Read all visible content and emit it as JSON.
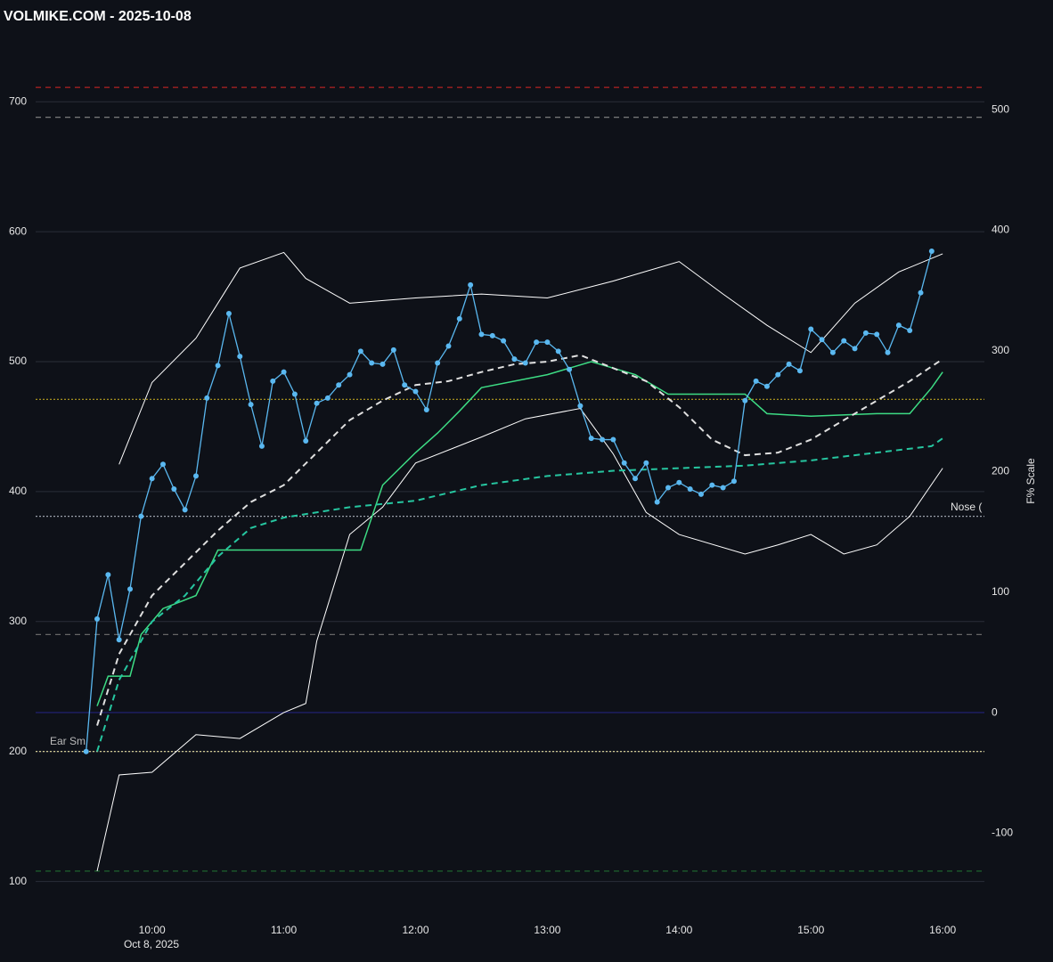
{
  "chart_data": {
    "type": "line",
    "title": "VOLMIKE.COM  - 2025-10-08",
    "y2_label": "F% Scale",
    "x_sublabel": "Oct 8, 2025",
    "annotations": [
      "Nose (",
      "Ear Sm"
    ],
    "xlim": [
      "09:07",
      "16:19"
    ],
    "xticks": [
      "10:00",
      "11:00",
      "12:00",
      "13:00",
      "14:00",
      "15:00",
      "16:00"
    ],
    "ylim": [
      73,
      744
    ],
    "yticks": [
      100,
      200,
      300,
      400,
      500,
      600,
      700
    ],
    "y2lim": [
      -169,
      554
    ],
    "y2ticks": [
      -100,
      0,
      100,
      200,
      300,
      400,
      500
    ],
    "grid": true,
    "reference_lines": [
      {
        "value": 711,
        "color": "#b22222",
        "dash": "6,5"
      },
      {
        "value": 688,
        "color": "#888888",
        "dash": "6,5"
      },
      {
        "value": 471,
        "color": "#b8a01e",
        "dash": "2,2"
      },
      {
        "value": 381,
        "color": "#9aa0aa",
        "dash": "2,2"
      },
      {
        "value": 290,
        "color": "#666666",
        "dash": "6,5"
      },
      {
        "value": 230,
        "color": "#23237a",
        "dash": ""
      },
      {
        "value": 200,
        "color": "#e8e0a0",
        "dash": "2,2"
      },
      {
        "value": 108,
        "color": "#1f6b2f",
        "dash": "6,5"
      }
    ],
    "series": [
      {
        "color": "#ffffff",
        "width": 1,
        "dash": "",
        "x": [
          "09:45",
          "10:00",
          "10:20",
          "10:40",
          "11:00",
          "11:10",
          "11:30",
          "12:00",
          "12:30",
          "13:00",
          "13:30",
          "14:00",
          "14:20",
          "14:40",
          "15:00",
          "15:20",
          "15:40",
          "16:00"
        ],
        "values": [
          421,
          484,
          518,
          572,
          584,
          564,
          545,
          549,
          552,
          549,
          562,
          577,
          552,
          528,
          507,
          545,
          569,
          583
        ]
      },
      {
        "color": "#ffffff",
        "width": 1,
        "dash": "",
        "x": [
          "09:35",
          "09:45",
          "10:00",
          "10:20",
          "10:40",
          "11:00",
          "11:10",
          "11:15",
          "11:30",
          "11:45",
          "12:00",
          "12:30",
          "12:50",
          "13:15",
          "13:30",
          "13:45",
          "14:00",
          "14:30",
          "14:45",
          "15:00",
          "15:15",
          "15:30",
          "15:45",
          "16:00"
        ],
        "values": [
          108,
          182,
          184,
          213,
          210,
          230,
          237,
          285,
          367,
          388,
          422,
          442,
          456,
          464,
          429,
          384,
          367,
          352,
          359,
          367,
          352,
          359,
          381,
          418
        ]
      },
      {
        "color": "#3ddc84",
        "width": 1.5,
        "dash": "",
        "x": [
          "09:35",
          "09:40",
          "09:50",
          "09:55",
          "10:05",
          "10:20",
          "10:30",
          "11:00",
          "11:35",
          "11:45",
          "12:00",
          "12:10",
          "12:20",
          "12:30",
          "13:00",
          "13:20",
          "13:40",
          "13:55",
          "14:30",
          "14:40",
          "15:00",
          "15:30",
          "15:45",
          "15:55",
          "16:00"
        ],
        "values": [
          235,
          258,
          258,
          290,
          310,
          320,
          355,
          355,
          355,
          405,
          430,
          445,
          462,
          480,
          490,
          500,
          490,
          475,
          475,
          460,
          458,
          460,
          460,
          480,
          492
        ]
      },
      {
        "color": "#26c6a0",
        "width": 2,
        "dash": "7,5",
        "x": [
          "09:35",
          "09:45",
          "10:00",
          "10:15",
          "10:30",
          "10:45",
          "11:00",
          "11:30",
          "12:00",
          "12:30",
          "13:00",
          "13:30",
          "14:00",
          "14:30",
          "15:00",
          "15:30",
          "15:55",
          "16:00"
        ],
        "values": [
          200,
          255,
          300,
          320,
          350,
          372,
          380,
          388,
          393,
          405,
          412,
          416,
          418,
          420,
          424,
          430,
          435,
          441
        ]
      },
      {
        "color": "#e0e0e0",
        "width": 2,
        "dash": "7,5",
        "x": [
          "09:35",
          "09:45",
          "10:00",
          "10:15",
          "10:30",
          "10:45",
          "11:00",
          "11:15",
          "11:30",
          "11:45",
          "12:00",
          "12:15",
          "12:30",
          "12:45",
          "13:00",
          "13:15",
          "13:30",
          "13:45",
          "14:00",
          "14:15",
          "14:30",
          "14:45",
          "15:00",
          "15:15",
          "15:30",
          "15:45",
          "16:00"
        ],
        "values": [
          220,
          275,
          320,
          345,
          370,
          392,
          405,
          430,
          455,
          470,
          482,
          485,
          492,
          498,
          500,
          505,
          495,
          485,
          465,
          440,
          428,
          430,
          440,
          455,
          470,
          485,
          502
        ]
      },
      {
        "color": "#5ab8f0",
        "width": 1.3,
        "dash": "",
        "markers": true,
        "x": [
          "09:30",
          "09:35",
          "09:40",
          "09:45",
          "09:50",
          "09:55",
          "10:00",
          "10:05",
          "10:10",
          "10:15",
          "10:20",
          "10:25",
          "10:30",
          "10:35",
          "10:40",
          "10:45",
          "10:50",
          "10:55",
          "11:00",
          "11:05",
          "11:10",
          "11:15",
          "11:20",
          "11:25",
          "11:30",
          "11:35",
          "11:40",
          "11:45",
          "11:50",
          "11:55",
          "12:00",
          "12:05",
          "12:10",
          "12:15",
          "12:20",
          "12:25",
          "12:30",
          "12:35",
          "12:40",
          "12:45",
          "12:50",
          "12:55",
          "13:00",
          "13:05",
          "13:10",
          "13:15",
          "13:20",
          "13:25",
          "13:30",
          "13:35",
          "13:40",
          "13:45",
          "13:50",
          "13:55",
          "14:00",
          "14:05",
          "14:10",
          "14:15",
          "14:20",
          "14:25",
          "14:30",
          "14:35",
          "14:40",
          "14:45",
          "14:50",
          "14:55",
          "15:00",
          "15:05",
          "15:10",
          "15:15",
          "15:20",
          "15:25",
          "15:30",
          "15:35",
          "15:40",
          "15:45",
          "15:50",
          "15:55"
        ],
        "values": [
          200,
          302,
          336,
          286,
          325,
          381,
          410,
          421,
          402,
          386,
          412,
          472,
          497,
          537,
          504,
          467,
          435,
          485,
          492,
          475,
          439,
          468,
          472,
          482,
          490,
          508,
          499,
          498,
          509,
          482,
          477,
          463,
          499,
          512,
          533,
          559,
          521,
          520,
          516,
          502,
          499,
          515,
          515,
          508,
          494,
          466,
          441,
          440,
          440,
          422,
          410,
          422,
          392,
          403,
          407,
          402,
          398,
          405,
          403,
          408,
          470,
          485,
          481,
          490,
          498,
          493,
          525,
          517,
          507,
          516,
          510,
          522,
          521,
          507,
          528,
          524,
          553,
          585
        ]
      }
    ]
  }
}
